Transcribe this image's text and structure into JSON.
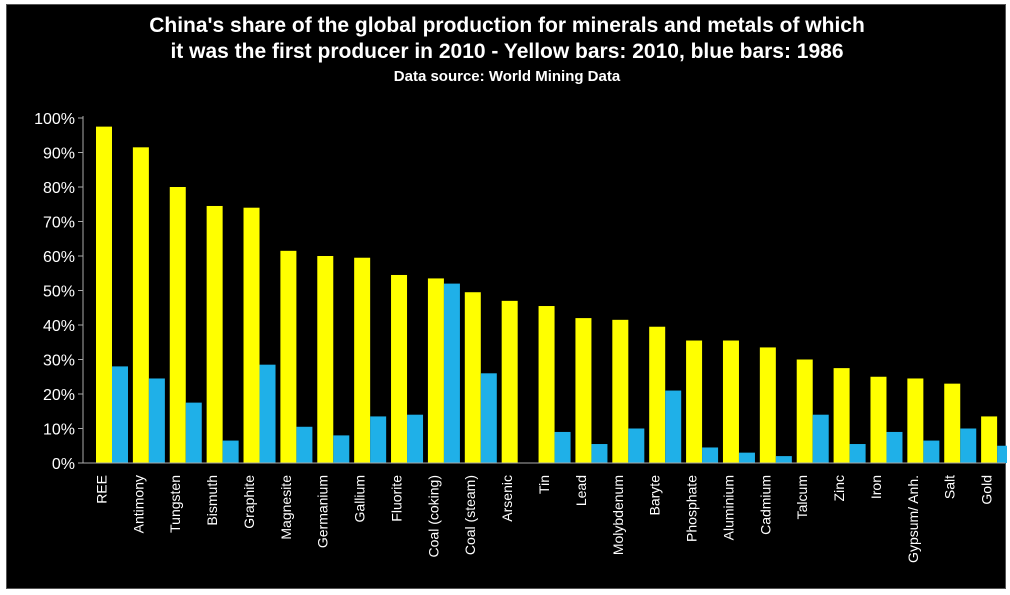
{
  "chart_data": {
    "type": "bar",
    "title_line1": "China's share of the global production for minerals and metals of which",
    "title_line2": "it was the first  producer in 2010 - Yellow bars: 2010, blue bars:  1986",
    "subtitle": "Data source: World Mining Data",
    "categories": [
      "REE",
      "Antimony",
      "Tungsten",
      "Bismuth",
      "Graphite",
      "Magnesite",
      "Germanium",
      "Gallium",
      "Fluorite",
      "Coal (coking)",
      "Coal (steam)",
      "Arsenic",
      "Tin",
      "Lead",
      "Molybdenum",
      "Baryte",
      "Phosphate",
      "Aluminium",
      "Cadmium",
      "Talcum",
      "Zinc",
      "Iron",
      "Gypsum/ Anh.",
      "Salt",
      "Gold"
    ],
    "series": [
      {
        "key": "2010",
        "color": "#ffff00",
        "values": [
          97.5,
          91.5,
          80,
          74.5,
          74,
          61.5,
          60,
          59.5,
          54.5,
          53.5,
          49.5,
          47,
          45.5,
          42,
          41.5,
          39.5,
          35.5,
          35.5,
          33.5,
          30,
          27.5,
          25,
          24.5,
          23,
          13.5
        ]
      },
      {
        "key": "1986",
        "color": "#1fb0e8",
        "values": [
          28,
          24.5,
          17.5,
          6.5,
          28.5,
          10.5,
          8,
          13.5,
          14,
          52,
          26,
          0,
          9,
          5.5,
          10,
          21,
          4.5,
          3,
          2,
          14,
          5.5,
          9,
          6.5,
          10,
          5
        ]
      }
    ],
    "ylim": [
      0,
      100
    ],
    "yticks": [
      "0%",
      "10%",
      "20%",
      "30%",
      "40%",
      "50%",
      "60%",
      "70%",
      "80%",
      "90%",
      "100%"
    ],
    "grid": false
  }
}
